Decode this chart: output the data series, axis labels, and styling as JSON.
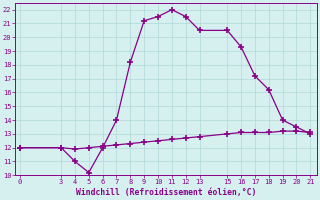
{
  "xlabel": "Windchill (Refroidissement éolien,°C)",
  "bg_color": "#d6f0f0",
  "grid_color": "#b0d8d8",
  "line_color": "#880088",
  "marker": "+",
  "markersize": 4,
  "markeredgewidth": 1.2,
  "linewidth": 0.9,
  "ylim": [
    10,
    22.5
  ],
  "xlim": [
    -0.3,
    21.5
  ],
  "yticks": [
    10,
    11,
    12,
    13,
    14,
    15,
    16,
    17,
    18,
    19,
    20,
    21,
    22
  ],
  "xticks": [
    0,
    3,
    4,
    5,
    6,
    7,
    8,
    9,
    10,
    11,
    12,
    13,
    15,
    16,
    17,
    18,
    19,
    20,
    21
  ],
  "series1_x": [
    0,
    3,
    4,
    5,
    6,
    7,
    8,
    9,
    10,
    11,
    12,
    13,
    15,
    16,
    17,
    18,
    19,
    20,
    21
  ],
  "series1_y": [
    12,
    12,
    11,
    10.2,
    12,
    14,
    18.2,
    21.2,
    21.5,
    22.0,
    21.5,
    20.5,
    20.5,
    19.3,
    17.2,
    16.2,
    14.0,
    13.5,
    13.0
  ],
  "series2_x": [
    0,
    3,
    4,
    5,
    6,
    7,
    8,
    9,
    10,
    11,
    12,
    13,
    15,
    16,
    17,
    18,
    19,
    20,
    21
  ],
  "series2_y": [
    12,
    12,
    11.9,
    12.0,
    12.1,
    12.2,
    12.3,
    12.4,
    12.5,
    12.6,
    12.7,
    12.8,
    13.0,
    13.1,
    13.1,
    13.1,
    13.2,
    13.2,
    13.1
  ]
}
